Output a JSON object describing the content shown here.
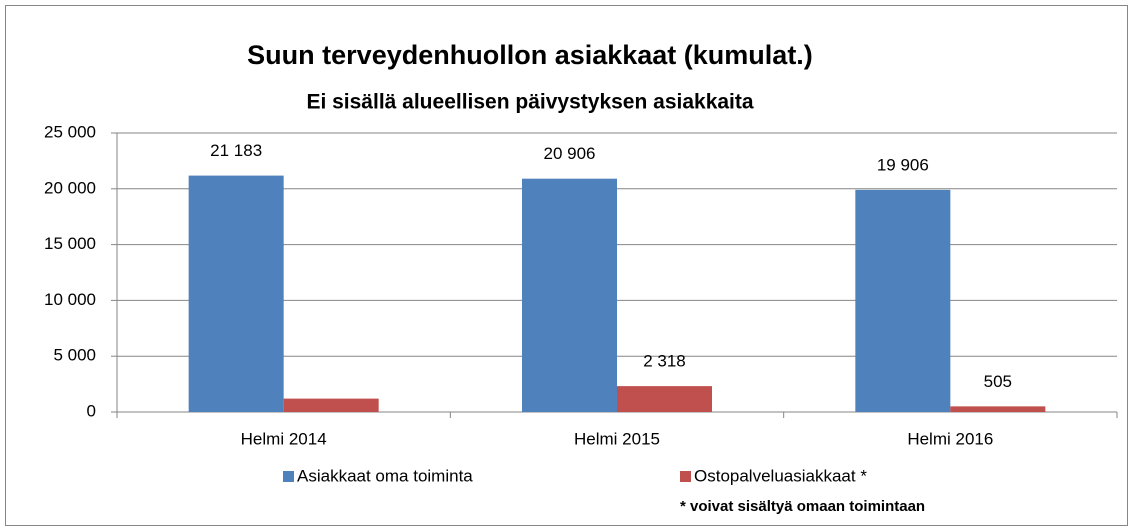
{
  "chart_data": {
    "type": "bar",
    "title": "Suun terveydenhuollon asiakkaat (kumulat.)",
    "subtitle": "Ei sisällä alueellisen päivystyksen asiakkaita",
    "annotation": "* voivat  sisältyä omaan toimintaan",
    "categories": [
      "Helmi 2014",
      "Helmi 2015",
      "Helmi 2016"
    ],
    "series": [
      {
        "name": "Asiakkaat oma toiminta",
        "color": "#4f81bd",
        "values": [
          21183,
          20906,
          19906
        ],
        "value_labels": [
          "21 183",
          "20 906",
          "19 906"
        ]
      },
      {
        "name": "Ostopalveluasiakkaat *",
        "color": "#c0504d",
        "values": [
          1200,
          2318,
          505
        ],
        "value_labels": [
          null,
          "2 318",
          "505"
        ]
      }
    ],
    "ylim": [
      0,
      25000
    ],
    "yticks": [
      0,
      {
        "value": 5000,
        "label": "5 000"
      },
      {
        "value": 10000,
        "label": "10 000"
      },
      {
        "value": 15000,
        "label": "15 000"
      },
      {
        "value": 20000,
        "label": "20 000"
      },
      {
        "value": 25000,
        "label": "25 000"
      }
    ],
    "grid": true,
    "legend": "bottom"
  }
}
